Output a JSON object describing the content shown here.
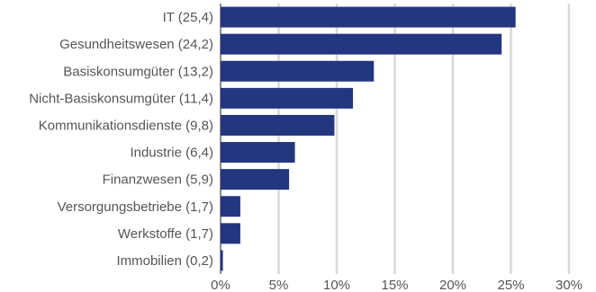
{
  "chart_data": {
    "type": "bar",
    "orientation": "horizontal",
    "categories": [
      "IT (25,4)",
      "Gesundheitswesen (24,2)",
      "Basiskonsumgüter (13,2)",
      "Nicht-Basiskonsumgüter (11,4)",
      "Kommunikationsdienste (9,8)",
      "Industrie (6,4)",
      "Finanzwesen (5,9)",
      "Versorgungsbetriebe (1,7)",
      "Werkstoffe (1,7)",
      "Immobilien (0,2)"
    ],
    "values": [
      25.4,
      24.2,
      13.2,
      11.4,
      9.8,
      6.4,
      5.9,
      1.7,
      1.7,
      0.2
    ],
    "title": "",
    "xlabel": "",
    "ylabel": "",
    "xlim": [
      0,
      30
    ],
    "xticks": [
      0,
      5,
      10,
      15,
      20,
      25,
      30
    ],
    "xtick_labels": [
      "0%",
      "5%",
      "10%",
      "15%",
      "20%",
      "25%",
      "30%"
    ],
    "grid": "vertical",
    "legend": "none",
    "bar_color": "#233680",
    "grid_color": "#d9d9d9"
  }
}
